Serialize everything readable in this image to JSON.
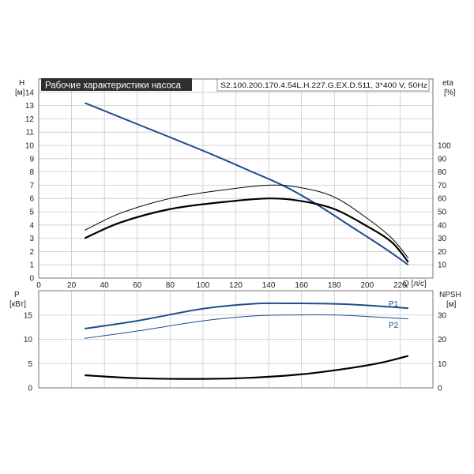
{
  "title": "Рабочие характеристики насоса",
  "model": "S2.100.200.170.4.54L.H.227.G.EX.D.511, 3*400 V, 50Hz",
  "colors": {
    "head": "#1f4e8c",
    "efficiency": "#000000",
    "power": "#1f4e8c",
    "npsh": "#000000"
  },
  "chart_data": [
    {
      "type": "line",
      "xlabel": "Q [л/с]",
      "ylabel": "H [м]",
      "y2label": "eta [%]",
      "xlim": [
        0,
        240
      ],
      "ylim": [
        0,
        15
      ],
      "y2lim": [
        0,
        150
      ],
      "xticks": [
        0,
        20,
        40,
        60,
        80,
        100,
        120,
        140,
        160,
        180,
        200,
        220
      ],
      "yticks": [
        0,
        1,
        2,
        3,
        4,
        5,
        6,
        7,
        8,
        9,
        10,
        11,
        12,
        13,
        14
      ],
      "y2ticks": [
        10,
        20,
        30,
        40,
        50,
        60,
        70,
        80,
        90,
        100
      ],
      "grid": true,
      "series": [
        {
          "axis": "left",
          "x": [
            28,
            60,
            100,
            130,
            150,
            170,
            190,
            210,
            225
          ],
          "y": [
            13.2,
            11.6,
            9.6,
            8.0,
            6.9,
            5.5,
            3.9,
            2.3,
            1.0
          ]
        },
        {
          "axis": "right",
          "x": [
            28,
            50,
            80,
            110,
            140,
            160,
            180,
            200,
            215,
            225
          ],
          "y": [
            36,
            49,
            60,
            66,
            70,
            68,
            61,
            45,
            30,
            15
          ]
        },
        {
          "axis": "right",
          "x": [
            28,
            50,
            80,
            110,
            140,
            160,
            180,
            200,
            215,
            225
          ],
          "y": [
            30,
            42,
            52,
            57,
            60,
            58,
            52,
            39,
            27,
            12
          ]
        }
      ]
    },
    {
      "type": "line",
      "xlim": [
        0,
        240
      ],
      "ylabel": "P [кВт]",
      "y2label": "NPSH [м]",
      "ylim": [
        0,
        20
      ],
      "y2lim": [
        0,
        40
      ],
      "yticks": [
        0,
        5,
        10,
        15
      ],
      "y2ticks": [
        0,
        10,
        20,
        30
      ],
      "grid": true,
      "series": [
        {
          "name": "P1",
          "axis": "left",
          "x": [
            28,
            60,
            100,
            130,
            150,
            180,
            200,
            225
          ],
          "y": [
            12.2,
            13.8,
            16.3,
            17.3,
            17.4,
            17.3,
            17.0,
            16.4
          ]
        },
        {
          "name": "P2",
          "axis": "left",
          "x": [
            28,
            60,
            100,
            130,
            150,
            180,
            200,
            225
          ],
          "y": [
            10.2,
            11.7,
            13.8,
            14.8,
            15.0,
            15.0,
            14.7,
            14.2
          ]
        },
        {
          "axis": "right",
          "x": [
            28,
            60,
            100,
            130,
            160,
            190,
            210,
            225
          ],
          "y": [
            5.2,
            4.0,
            3.7,
            4.2,
            5.6,
            8.2,
            10.6,
            13.2
          ]
        }
      ]
    }
  ]
}
